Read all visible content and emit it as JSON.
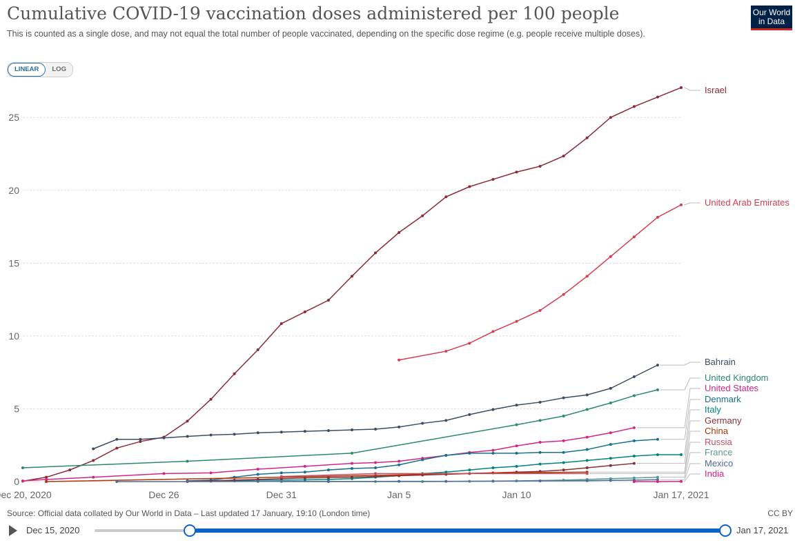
{
  "header": {
    "title": "Cumulative COVID-19 vaccination doses administered per 100 people",
    "subtitle": "This is counted as a single dose, and may not equal the total number of people vaccinated, depending on the specific dose regime (e.g. people receive multiple doses).",
    "logo_line1": "Our World",
    "logo_line2": "in Data"
  },
  "scale_toggle": {
    "linear_label": "LINEAR",
    "log_label": "LOG",
    "selected": "linear"
  },
  "footer": {
    "source": "Source: Official data collated by Our World in Data – Last updated 17 January, 19:10 (London time)",
    "license": "CC BY"
  },
  "timeline": {
    "start_label": "Dec 15, 2020",
    "end_label": "Jan 17, 2021",
    "selected_start_fraction": 0.15,
    "selected_end_fraction": 1.0
  },
  "chart_data": {
    "type": "line",
    "title": "Cumulative COVID-19 vaccination doses administered per 100 people",
    "xlabel": "",
    "ylabel": "",
    "x_range": [
      "2020-12-20",
      "2021-01-17"
    ],
    "ylim": [
      0,
      27
    ],
    "y_ticks": [
      0,
      5,
      10,
      15,
      20,
      25
    ],
    "x_ticks": [
      {
        "date": "2020-12-20",
        "label": "Dec 20, 2020"
      },
      {
        "date": "2020-12-26",
        "label": "Dec 26"
      },
      {
        "date": "2020-12-31",
        "label": "Dec 31"
      },
      {
        "date": "2021-01-05",
        "label": "Jan 5"
      },
      {
        "date": "2021-01-10",
        "label": "Jan 10"
      },
      {
        "date": "2021-01-17",
        "label": "Jan 17, 2021"
      }
    ],
    "grid": "horizontal-dashed",
    "legend": "right-end-labels",
    "series": [
      {
        "name": "Israel",
        "color": "#8c2a38",
        "dates": [
          "2020-12-20",
          "2020-12-21",
          "2020-12-22",
          "2020-12-23",
          "2020-12-24",
          "2020-12-25",
          "2020-12-26",
          "2020-12-27",
          "2020-12-28",
          "2020-12-29",
          "2020-12-30",
          "2020-12-31",
          "2021-01-01",
          "2021-01-02",
          "2021-01-03",
          "2021-01-04",
          "2021-01-05",
          "2021-01-06",
          "2021-01-07",
          "2021-01-08",
          "2021-01-09",
          "2021-01-10",
          "2021-01-11",
          "2021-01-12",
          "2021-01-13",
          "2021-01-14",
          "2021-01-15",
          "2021-01-16",
          "2021-01-17"
        ],
        "values": [
          0.03,
          0.3,
          0.8,
          1.45,
          2.3,
          2.75,
          3.05,
          4.15,
          5.65,
          7.4,
          9.05,
          10.85,
          11.65,
          12.45,
          14.1,
          15.7,
          17.1,
          18.25,
          19.55,
          20.25,
          20.75,
          21.25,
          21.65,
          22.35,
          23.6,
          25.0,
          25.75,
          26.4,
          27.05
        ]
      },
      {
        "name": "United Arab Emirates",
        "color": "#d73c50",
        "dates": [
          "2021-01-05",
          "2021-01-07",
          "2021-01-08",
          "2021-01-09",
          "2021-01-10",
          "2021-01-11",
          "2021-01-12",
          "2021-01-13",
          "2021-01-14",
          "2021-01-15",
          "2021-01-16",
          "2021-01-17"
        ],
        "values": [
          8.35,
          8.95,
          9.5,
          10.3,
          11.0,
          11.75,
          12.85,
          14.1,
          15.45,
          16.8,
          18.15,
          19.0
        ]
      },
      {
        "name": "Bahrain",
        "color": "#3c4e66",
        "dates": [
          "2020-12-23",
          "2020-12-24",
          "2020-12-25",
          "2020-12-26",
          "2020-12-27",
          "2020-12-28",
          "2020-12-29",
          "2020-12-30",
          "2020-12-31",
          "2021-01-01",
          "2021-01-02",
          "2021-01-03",
          "2021-01-04",
          "2021-01-05",
          "2021-01-06",
          "2021-01-07",
          "2021-01-08",
          "2021-01-09",
          "2021-01-10",
          "2021-01-11",
          "2021-01-12",
          "2021-01-13",
          "2021-01-14",
          "2021-01-15",
          "2021-01-16"
        ],
        "values": [
          2.25,
          2.9,
          2.9,
          3.0,
          3.1,
          3.2,
          3.25,
          3.35,
          3.4,
          3.45,
          3.5,
          3.55,
          3.6,
          3.75,
          4.0,
          4.2,
          4.6,
          4.95,
          5.25,
          5.45,
          5.75,
          5.95,
          6.4,
          7.2,
          8.0
        ]
      },
      {
        "name": "United Kingdom",
        "color": "#2a8a6e",
        "dates": [
          "2020-12-20",
          "2020-12-27",
          "2021-01-03",
          "2021-01-10",
          "2021-01-11",
          "2021-01-12",
          "2021-01-13",
          "2021-01-14",
          "2021-01-15",
          "2021-01-16"
        ],
        "values": [
          0.95,
          1.4,
          1.95,
          3.9,
          4.2,
          4.5,
          4.95,
          5.4,
          5.9,
          6.3
        ]
      },
      {
        "name": "United States",
        "color": "#d42585",
        "dates": [
          "2020-12-20",
          "2020-12-21",
          "2020-12-23",
          "2020-12-26",
          "2020-12-28",
          "2020-12-30",
          "2021-01-01",
          "2021-01-03",
          "2021-01-04",
          "2021-01-05",
          "2021-01-06",
          "2021-01-07",
          "2021-01-08",
          "2021-01-09",
          "2021-01-10",
          "2021-01-11",
          "2021-01-12",
          "2021-01-13",
          "2021-01-14",
          "2021-01-15"
        ],
        "values": [
          0.05,
          0.15,
          0.3,
          0.55,
          0.6,
          0.85,
          1.05,
          1.25,
          1.3,
          1.4,
          1.6,
          1.8,
          2.0,
          2.15,
          2.45,
          2.7,
          2.8,
          3.05,
          3.35,
          3.7
        ]
      },
      {
        "name": "Denmark",
        "color": "#18708f",
        "dates": [
          "2020-12-27",
          "2020-12-28",
          "2020-12-29",
          "2020-12-30",
          "2020-12-31",
          "2021-01-01",
          "2021-01-02",
          "2021-01-03",
          "2021-01-04",
          "2021-01-05",
          "2021-01-06",
          "2021-01-07",
          "2021-01-08",
          "2021-01-09",
          "2021-01-10",
          "2021-01-11",
          "2021-01-12",
          "2021-01-13",
          "2021-01-14",
          "2021-01-15",
          "2021-01-16"
        ],
        "values": [
          0.05,
          0.1,
          0.3,
          0.5,
          0.6,
          0.65,
          0.8,
          0.9,
          0.95,
          1.15,
          1.5,
          1.8,
          1.95,
          1.95,
          1.95,
          2.0,
          2.0,
          2.2,
          2.55,
          2.8,
          2.9
        ]
      },
      {
        "name": "Italy",
        "color": "#00847e",
        "dates": [
          "2020-12-27",
          "2020-12-28",
          "2020-12-29",
          "2020-12-30",
          "2020-12-31",
          "2021-01-01",
          "2021-01-02",
          "2021-01-03",
          "2021-01-04",
          "2021-01-05",
          "2021-01-06",
          "2021-01-07",
          "2021-01-08",
          "2021-01-09",
          "2021-01-10",
          "2021-01-11",
          "2021-01-12",
          "2021-01-13",
          "2021-01-14",
          "2021-01-15",
          "2021-01-16",
          "2021-01-17"
        ],
        "values": [
          0.02,
          0.03,
          0.05,
          0.1,
          0.1,
          0.12,
          0.15,
          0.2,
          0.3,
          0.4,
          0.55,
          0.65,
          0.8,
          0.95,
          1.05,
          1.2,
          1.3,
          1.45,
          1.6,
          1.75,
          1.85,
          1.85
        ]
      },
      {
        "name": "Germany",
        "color": "#883039",
        "dates": [
          "2020-12-27",
          "2020-12-28",
          "2020-12-29",
          "2020-12-30",
          "2020-12-31",
          "2021-01-01",
          "2021-01-02",
          "2021-01-03",
          "2021-01-04",
          "2021-01-05",
          "2021-01-06",
          "2021-01-07",
          "2021-01-08",
          "2021-01-09",
          "2021-01-10",
          "2021-01-11",
          "2021-01-12",
          "2021-01-13",
          "2021-01-14",
          "2021-01-15"
        ],
        "values": [
          0.03,
          0.05,
          0.1,
          0.15,
          0.2,
          0.25,
          0.27,
          0.3,
          0.35,
          0.4,
          0.45,
          0.5,
          0.55,
          0.6,
          0.65,
          0.7,
          0.8,
          0.95,
          1.1,
          1.25
        ]
      },
      {
        "name": "China",
        "color": "#b13507",
        "dates": [
          "2020-12-21",
          "2020-12-31",
          "2021-01-09",
          "2021-01-13"
        ],
        "values": [
          0.0,
          0.3,
          0.6,
          0.65
        ]
      },
      {
        "name": "Russia",
        "color": "#c15065",
        "dates": [
          "2020-12-31",
          "2021-01-04",
          "2021-01-13"
        ],
        "values": [
          0.35,
          0.55,
          0.55
        ]
      },
      {
        "name": "France",
        "color": "#5a9a8e",
        "dates": [
          "2020-12-31",
          "2021-01-02",
          "2021-01-04",
          "2021-01-06",
          "2021-01-08",
          "2021-01-10",
          "2021-01-12",
          "2021-01-13",
          "2021-01-14",
          "2021-01-15",
          "2021-01-16"
        ],
        "values": [
          0.0,
          0.0,
          0.0,
          0.0,
          0.02,
          0.05,
          0.1,
          0.15,
          0.2,
          0.25,
          0.3
        ]
      },
      {
        "name": "Mexico",
        "color": "#4c6a9c",
        "dates": [
          "2020-12-24",
          "2020-12-27",
          "2020-12-30",
          "2021-01-02",
          "2021-01-05",
          "2021-01-07",
          "2021-01-09",
          "2021-01-11",
          "2021-01-13",
          "2021-01-14",
          "2021-01-15",
          "2021-01-16"
        ],
        "values": [
          0.0,
          0.0,
          0.01,
          0.01,
          0.02,
          0.02,
          0.03,
          0.05,
          0.06,
          0.08,
          0.1,
          0.13
        ]
      },
      {
        "name": "India",
        "color": "#e11d7a",
        "dates": [
          "2021-01-15",
          "2021-01-16",
          "2021-01-17"
        ],
        "values": [
          0.0,
          0.0,
          0.01
        ]
      }
    ]
  }
}
